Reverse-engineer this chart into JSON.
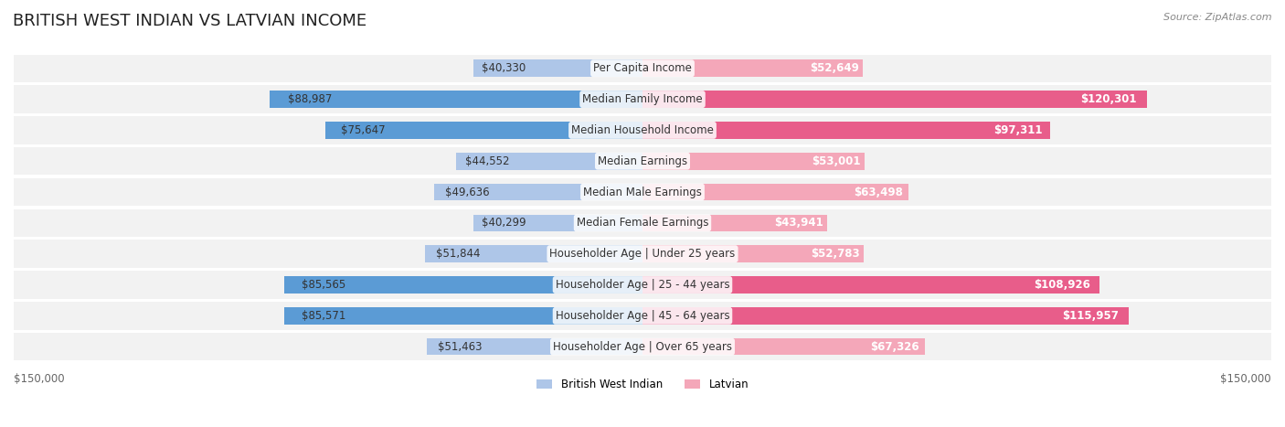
{
  "title": "BRITISH WEST INDIAN VS LATVIAN INCOME",
  "source": "Source: ZipAtlas.com",
  "categories": [
    "Per Capita Income",
    "Median Family Income",
    "Median Household Income",
    "Median Earnings",
    "Median Male Earnings",
    "Median Female Earnings",
    "Householder Age | Under 25 years",
    "Householder Age | 25 - 44 years",
    "Householder Age | 45 - 64 years",
    "Householder Age | Over 65 years"
  ],
  "british_values": [
    40330,
    88987,
    75647,
    44552,
    49636,
    40299,
    51844,
    85565,
    85571,
    51463
  ],
  "latvian_values": [
    52649,
    120301,
    97311,
    53001,
    63498,
    43941,
    52783,
    108926,
    115957,
    67326
  ],
  "british_labels": [
    "$40,330",
    "$88,987",
    "$75,647",
    "$44,552",
    "$49,636",
    "$40,299",
    "$51,844",
    "$85,565",
    "$85,571",
    "$51,463"
  ],
  "latvian_labels": [
    "$52,649",
    "$120,301",
    "$97,311",
    "$53,001",
    "$63,498",
    "$43,941",
    "$52,783",
    "$108,926",
    "$115,957",
    "$67,326"
  ],
  "british_color_light": "#aec6e8",
  "british_color_dark": "#5b9bd5",
  "latvian_color_light": "#f4a7b9",
  "latvian_color_dark": "#e85d8a",
  "max_value": 150000,
  "xlabel_left": "$150,000",
  "xlabel_right": "$150,000",
  "legend_british": "British West Indian",
  "legend_latvian": "Latvian",
  "background_color": "#ffffff",
  "row_bg_color": "#f2f2f2",
  "title_fontsize": 13,
  "label_fontsize": 8.5,
  "category_fontsize": 8.5
}
